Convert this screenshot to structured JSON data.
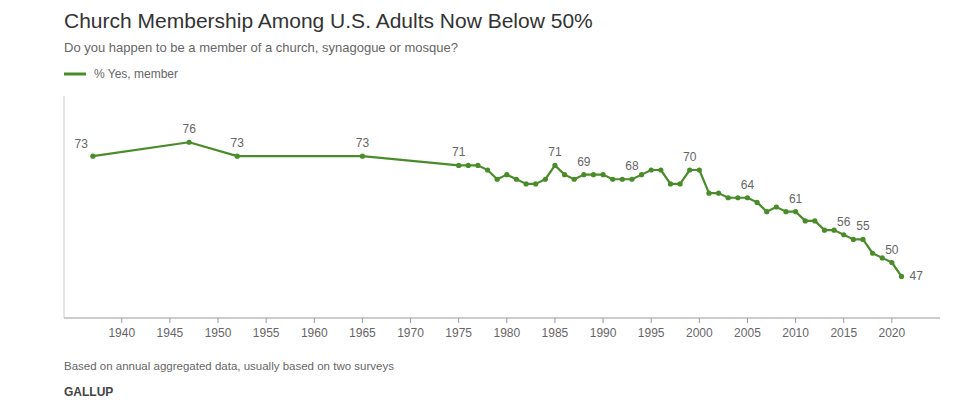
{
  "chart_data": {
    "type": "line",
    "title": "Church Membership Among U.S. Adults Now Below 50%",
    "subtitle": "Do you happen to be a member of a church, synagogue or mosque?",
    "footnote": "Based on annual aggregated data, usually based on two surveys",
    "source": "GALLUP",
    "x": [
      1937,
      1947,
      1952,
      1965,
      1975,
      1976,
      1977,
      1978,
      1979,
      1980,
      1981,
      1982,
      1983,
      1984,
      1985,
      1986,
      1987,
      1988,
      1989,
      1990,
      1991,
      1992,
      1993,
      1994,
      1995,
      1996,
      1997,
      1998,
      1999,
      2000,
      2001,
      2002,
      2003,
      2004,
      2005,
      2006,
      2007,
      2008,
      2009,
      2010,
      2011,
      2012,
      2013,
      2014,
      2015,
      2016,
      2017,
      2018,
      2019,
      2020,
      2021
    ],
    "series": [
      {
        "name": "% Yes, member",
        "color": "#4a8c2a",
        "marker": "circle",
        "values": [
          73,
          76,
          73,
          73,
          71,
          71,
          71,
          70,
          68,
          69,
          68,
          67,
          67,
          68,
          71,
          69,
          68,
          69,
          69,
          69,
          68,
          68,
          68,
          69,
          70,
          70,
          67,
          67,
          70,
          70,
          65,
          65,
          64,
          64,
          64,
          63,
          61,
          62,
          61,
          61,
          59,
          59,
          57,
          57,
          56,
          55,
          55,
          52,
          51,
          50,
          47
        ],
        "value_labels": [
          "73",
          "76",
          "73",
          "73",
          "71",
          null,
          null,
          null,
          null,
          null,
          null,
          null,
          null,
          null,
          "71",
          null,
          null,
          "69",
          null,
          null,
          null,
          null,
          "68",
          null,
          null,
          null,
          null,
          null,
          "70",
          null,
          null,
          null,
          null,
          null,
          "64",
          null,
          null,
          null,
          null,
          "61",
          null,
          null,
          null,
          null,
          "56",
          null,
          "55",
          null,
          null,
          "50",
          "47"
        ]
      }
    ],
    "xlim": [
      1934,
      2025
    ],
    "ylim": [
      38,
      86
    ],
    "xticks": [
      1940,
      1945,
      1950,
      1955,
      1960,
      1965,
      1970,
      1975,
      1980,
      1985,
      1990,
      1995,
      2000,
      2005,
      2010,
      2015,
      2020
    ],
    "yticks": [],
    "grid": false,
    "legend": "upper left",
    "data_labels": true,
    "tick_labels": "x"
  }
}
